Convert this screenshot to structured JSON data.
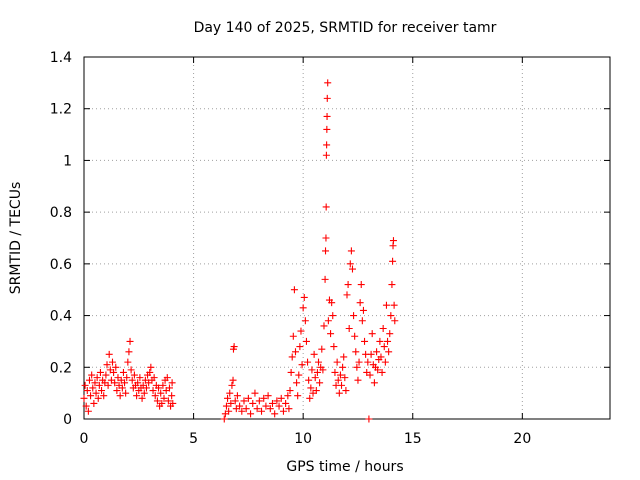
{
  "chart_data": {
    "type": "scatter",
    "title": "Day 140 of 2025, SRMTID for receiver tamr",
    "xlabel": "GPS time / hours",
    "ylabel": "SRMTID / TECUs",
    "xlim": [
      0,
      24
    ],
    "ylim": [
      0,
      1.4
    ],
    "xticks": [
      0,
      5,
      10,
      15,
      20
    ],
    "yticks": [
      0,
      0.2,
      0.4,
      0.6,
      0.8,
      1,
      1.2,
      1.4
    ],
    "xtick_labels": [
      "0",
      "5",
      "10",
      "15",
      "20"
    ],
    "ytick_labels": [
      "0",
      "0.2",
      "0.4",
      "0.6",
      "0.8",
      "1",
      "1.2",
      "1.4"
    ],
    "grid": true,
    "marker": "+",
    "color": "#ff0000",
    "series": [
      {
        "name": "SRMTID",
        "points": [
          [
            0.0,
            0.08
          ],
          [
            0.05,
            0.13
          ],
          [
            0.1,
            0.05
          ],
          [
            0.15,
            0.11
          ],
          [
            0.2,
            0.03
          ],
          [
            0.25,
            0.15
          ],
          [
            0.3,
            0.09
          ],
          [
            0.35,
            0.17
          ],
          [
            0.4,
            0.12
          ],
          [
            0.45,
            0.06
          ],
          [
            0.5,
            0.14
          ],
          [
            0.55,
            0.1
          ],
          [
            0.6,
            0.16
          ],
          [
            0.65,
            0.08
          ],
          [
            0.7,
            0.13
          ],
          [
            0.75,
            0.18
          ],
          [
            0.8,
            0.11
          ],
          [
            0.85,
            0.15
          ],
          [
            0.9,
            0.09
          ],
          [
            0.95,
            0.14
          ],
          [
            1.0,
            0.17
          ],
          [
            1.05,
            0.21
          ],
          [
            1.1,
            0.13
          ],
          [
            1.15,
            0.25
          ],
          [
            1.2,
            0.19
          ],
          [
            1.25,
            0.15
          ],
          [
            1.3,
            0.22
          ],
          [
            1.35,
            0.18
          ],
          [
            1.4,
            0.14
          ],
          [
            1.45,
            0.2
          ],
          [
            1.5,
            0.11
          ],
          [
            1.55,
            0.16
          ],
          [
            1.6,
            0.13
          ],
          [
            1.65,
            0.09
          ],
          [
            1.7,
            0.15
          ],
          [
            1.75,
            0.12
          ],
          [
            1.8,
            0.18
          ],
          [
            1.85,
            0.14
          ],
          [
            1.9,
            0.1
          ],
          [
            1.95,
            0.16
          ],
          [
            2.0,
            0.22
          ],
          [
            2.05,
            0.26
          ],
          [
            2.1,
            0.3
          ],
          [
            2.15,
            0.19
          ],
          [
            2.2,
            0.15
          ],
          [
            2.25,
            0.12
          ],
          [
            2.3,
            0.17
          ],
          [
            2.35,
            0.13
          ],
          [
            2.4,
            0.09
          ],
          [
            2.45,
            0.14
          ],
          [
            2.5,
            0.11
          ],
          [
            2.55,
            0.16
          ],
          [
            2.6,
            0.12
          ],
          [
            2.65,
            0.08
          ],
          [
            2.7,
            0.13
          ],
          [
            2.75,
            0.1
          ],
          [
            2.8,
            0.15
          ],
          [
            2.85,
            0.12
          ],
          [
            2.9,
            0.17
          ],
          [
            2.95,
            0.14
          ],
          [
            3.0,
            0.18
          ],
          [
            3.05,
            0.2
          ],
          [
            3.1,
            0.15
          ],
          [
            3.15,
            0.11
          ],
          [
            3.2,
            0.16
          ],
          [
            3.25,
            0.09
          ],
          [
            3.3,
            0.13
          ],
          [
            3.35,
            0.07
          ],
          [
            3.4,
            0.12
          ],
          [
            3.45,
            0.05
          ],
          [
            3.5,
            0.1
          ],
          [
            3.55,
            0.06
          ],
          [
            3.6,
            0.13
          ],
          [
            3.65,
            0.08
          ],
          [
            3.7,
            0.15
          ],
          [
            3.75,
            0.11
          ],
          [
            3.8,
            0.16
          ],
          [
            3.85,
            0.07
          ],
          [
            3.9,
            0.12
          ],
          [
            3.95,
            0.05
          ],
          [
            4.0,
            0.09
          ],
          [
            4.02,
            0.14
          ],
          [
            4.05,
            0.06
          ],
          [
            6.4,
            0.0
          ],
          [
            6.45,
            0.02
          ],
          [
            6.5,
            0.05
          ],
          [
            6.55,
            0.08
          ],
          [
            6.6,
            0.03
          ],
          [
            6.65,
            0.1
          ],
          [
            6.7,
            0.06
          ],
          [
            6.75,
            0.13
          ],
          [
            6.8,
            0.15
          ],
          [
            6.82,
            0.27
          ],
          [
            6.85,
            0.28
          ],
          [
            6.9,
            0.07
          ],
          [
            6.95,
            0.04
          ],
          [
            7.0,
            0.09
          ],
          [
            7.1,
            0.05
          ],
          [
            7.2,
            0.03
          ],
          [
            7.3,
            0.07
          ],
          [
            7.4,
            0.04
          ],
          [
            7.5,
            0.08
          ],
          [
            7.6,
            0.02
          ],
          [
            7.7,
            0.06
          ],
          [
            7.8,
            0.1
          ],
          [
            7.9,
            0.04
          ],
          [
            8.0,
            0.07
          ],
          [
            8.1,
            0.03
          ],
          [
            8.2,
            0.08
          ],
          [
            8.3,
            0.05
          ],
          [
            8.4,
            0.09
          ],
          [
            8.5,
            0.04
          ],
          [
            8.6,
            0.06
          ],
          [
            8.7,
            0.02
          ],
          [
            8.8,
            0.07
          ],
          [
            8.9,
            0.05
          ],
          [
            9.0,
            0.08
          ],
          [
            9.1,
            0.03
          ],
          [
            9.2,
            0.06
          ],
          [
            9.3,
            0.09
          ],
          [
            9.35,
            0.04
          ],
          [
            9.4,
            0.11
          ],
          [
            9.45,
            0.18
          ],
          [
            9.5,
            0.24
          ],
          [
            9.55,
            0.32
          ],
          [
            9.6,
            0.5
          ],
          [
            9.65,
            0.26
          ],
          [
            9.7,
            0.14
          ],
          [
            9.75,
            0.09
          ],
          [
            9.8,
            0.17
          ],
          [
            9.85,
            0.28
          ],
          [
            9.9,
            0.34
          ],
          [
            9.95,
            0.21
          ],
          [
            10.0,
            0.43
          ],
          [
            10.05,
            0.47
          ],
          [
            10.1,
            0.38
          ],
          [
            10.15,
            0.3
          ],
          [
            10.2,
            0.22
          ],
          [
            10.25,
            0.15
          ],
          [
            10.3,
            0.08
          ],
          [
            10.35,
            0.12
          ],
          [
            10.4,
            0.19
          ],
          [
            10.45,
            0.1
          ],
          [
            10.5,
            0.25
          ],
          [
            10.55,
            0.16
          ],
          [
            10.6,
            0.11
          ],
          [
            10.65,
            0.18
          ],
          [
            10.7,
            0.22
          ],
          [
            10.75,
            0.14
          ],
          [
            10.8,
            0.2
          ],
          [
            10.85,
            0.27
          ],
          [
            10.9,
            0.19
          ],
          [
            10.95,
            0.36
          ],
          [
            11.0,
            0.54
          ],
          [
            11.02,
            0.65
          ],
          [
            11.04,
            0.7
          ],
          [
            11.05,
            0.82
          ],
          [
            11.06,
            1.02
          ],
          [
            11.07,
            1.06
          ],
          [
            11.08,
            1.12
          ],
          [
            11.09,
            1.17
          ],
          [
            11.1,
            1.24
          ],
          [
            11.12,
            1.3
          ],
          [
            11.15,
            0.38
          ],
          [
            11.2,
            0.46
          ],
          [
            11.25,
            0.33
          ],
          [
            11.3,
            0.45
          ],
          [
            11.35,
            0.4
          ],
          [
            11.4,
            0.28
          ],
          [
            11.45,
            0.18
          ],
          [
            11.5,
            0.13
          ],
          [
            11.55,
            0.22
          ],
          [
            11.6,
            0.15
          ],
          [
            11.65,
            0.1
          ],
          [
            11.7,
            0.17
          ],
          [
            11.75,
            0.13
          ],
          [
            11.8,
            0.2
          ],
          [
            11.85,
            0.24
          ],
          [
            11.9,
            0.16
          ],
          [
            11.95,
            0.11
          ],
          [
            12.0,
            0.48
          ],
          [
            12.05,
            0.52
          ],
          [
            12.1,
            0.35
          ],
          [
            12.15,
            0.6
          ],
          [
            12.2,
            0.65
          ],
          [
            12.25,
            0.58
          ],
          [
            12.3,
            0.4
          ],
          [
            12.35,
            0.32
          ],
          [
            12.4,
            0.26
          ],
          [
            12.45,
            0.2
          ],
          [
            12.5,
            0.15
          ],
          [
            12.55,
            0.22
          ],
          [
            12.6,
            0.45
          ],
          [
            12.65,
            0.52
          ],
          [
            12.7,
            0.38
          ],
          [
            12.75,
            0.42
          ],
          [
            12.8,
            0.3
          ],
          [
            12.85,
            0.25
          ],
          [
            12.9,
            0.18
          ],
          [
            12.95,
            0.22
          ],
          [
            13.0,
            0.0
          ],
          [
            13.05,
            0.17
          ],
          [
            13.1,
            0.25
          ],
          [
            13.15,
            0.33
          ],
          [
            13.2,
            0.21
          ],
          [
            13.25,
            0.14
          ],
          [
            13.3,
            0.2
          ],
          [
            13.35,
            0.26
          ],
          [
            13.4,
            0.19
          ],
          [
            13.45,
            0.23
          ],
          [
            13.5,
            0.3
          ],
          [
            13.55,
            0.24
          ],
          [
            13.6,
            0.18
          ],
          [
            13.65,
            0.35
          ],
          [
            13.7,
            0.28
          ],
          [
            13.75,
            0.22
          ],
          [
            13.8,
            0.44
          ],
          [
            13.85,
            0.3
          ],
          [
            13.9,
            0.26
          ],
          [
            13.95,
            0.33
          ],
          [
            14.0,
            0.4
          ],
          [
            14.05,
            0.52
          ],
          [
            14.08,
            0.61
          ],
          [
            14.1,
            0.67
          ],
          [
            14.12,
            0.69
          ],
          [
            14.15,
            0.44
          ],
          [
            14.18,
            0.38
          ]
        ]
      }
    ]
  }
}
